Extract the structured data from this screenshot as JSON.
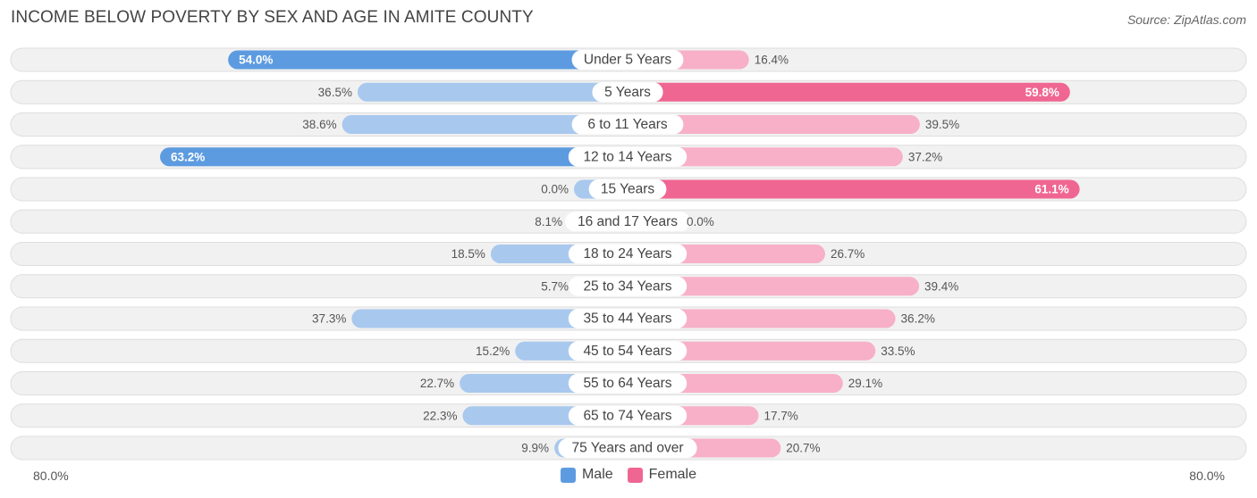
{
  "title": "INCOME BELOW POVERTY BY SEX AND AGE IN AMITE COUNTY",
  "source": "Source: ZipAtlas.com",
  "axis": {
    "left_label": "80.0%",
    "right_label": "80.0%"
  },
  "legend": {
    "male_label": "Male",
    "female_label": "Female"
  },
  "colors": {
    "male_strong": "#5d9be0",
    "male_light": "#a8c8ee",
    "female_strong": "#f06693",
    "female_light": "#f7b0c8",
    "track": "#f1f1f1",
    "track_border": "#dedede"
  },
  "chart_data": {
    "type": "bar",
    "orientation": "horizontal-diverging",
    "max": 80.0,
    "categories": [
      "Under 5 Years",
      "5 Years",
      "6 to 11 Years",
      "12 to 14 Years",
      "15 Years",
      "16 and 17 Years",
      "18 to 24 Years",
      "25 to 34 Years",
      "35 to 44 Years",
      "45 to 54 Years",
      "55 to 64 Years",
      "65 to 74 Years",
      "75 Years and over"
    ],
    "series": [
      {
        "name": "Male",
        "values": [
          54.0,
          36.5,
          38.6,
          63.2,
          0.0,
          8.1,
          18.5,
          5.7,
          37.3,
          15.2,
          22.7,
          22.3,
          9.9
        ],
        "labels": [
          "54.0%",
          "36.5%",
          "38.6%",
          "63.2%",
          "0.0%",
          "8.1%",
          "18.5%",
          "5.7%",
          "37.3%",
          "15.2%",
          "22.7%",
          "22.3%",
          "9.9%"
        ]
      },
      {
        "name": "Female",
        "values": [
          16.4,
          59.8,
          39.5,
          37.2,
          61.1,
          0.0,
          26.7,
          39.4,
          36.2,
          33.5,
          29.1,
          17.7,
          20.7
        ],
        "labels": [
          "16.4%",
          "59.8%",
          "39.5%",
          "37.2%",
          "61.1%",
          "0.0%",
          "26.7%",
          "39.4%",
          "36.2%",
          "33.5%",
          "29.1%",
          "17.7%",
          "20.7%"
        ]
      }
    ]
  }
}
